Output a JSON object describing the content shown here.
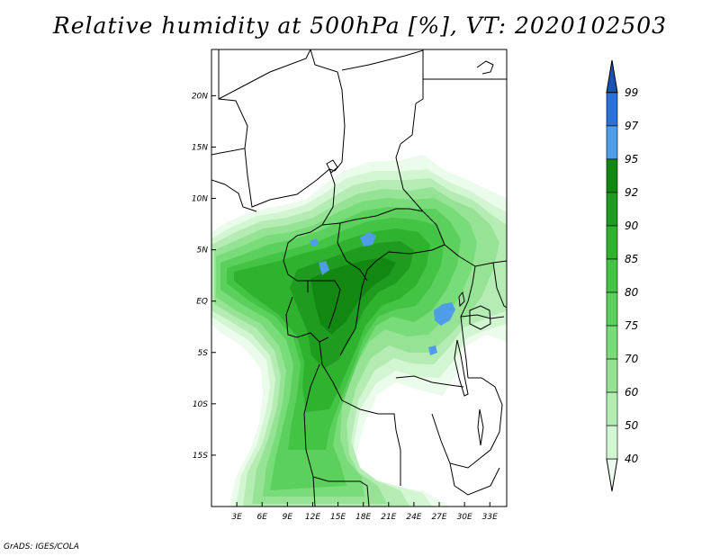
{
  "title": "Relative humidity at 500hPa [%], VT: 2020102503",
  "credit": "GrADS: IGES/COLA",
  "map": {
    "lat_ticks": [
      "20N",
      "15N",
      "10N",
      "5N",
      "EQ",
      "5S",
      "10S",
      "15S"
    ],
    "lon_ticks": [
      "3E",
      "6E",
      "9E",
      "12E",
      "15E",
      "18E",
      "21E",
      "24E",
      "27E",
      "30E",
      "33E"
    ],
    "lon_range": [
      0,
      35
    ],
    "lat_range": [
      -20,
      24.5
    ]
  },
  "colorbar": {
    "labels": [
      "40",
      "50",
      "60",
      "70",
      "75",
      "80",
      "85",
      "90",
      "92",
      "95",
      "97",
      "99"
    ],
    "colors": [
      "#ecfcec",
      "#d2f5d2",
      "#b4ecb4",
      "#96e396",
      "#78dc78",
      "#5cd05c",
      "#44c444",
      "#2fb32f",
      "#1f9c1f",
      "#128812",
      "#4f9de8",
      "#2a72d8",
      "#1a52b8"
    ]
  }
}
